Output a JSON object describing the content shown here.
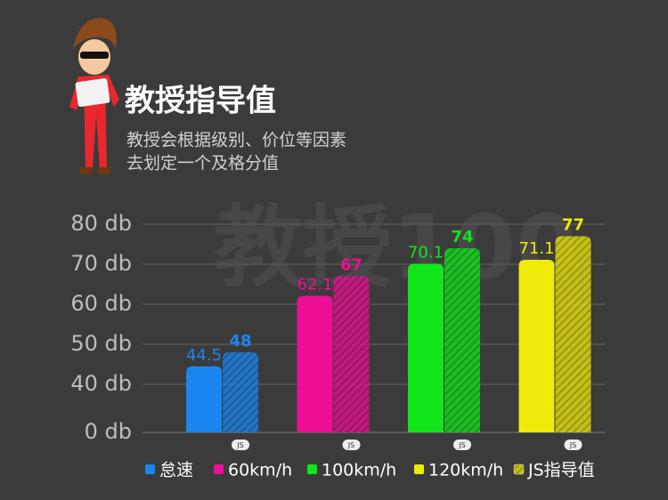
{
  "chart_data": {
    "type": "bar",
    "title": "教授指导值",
    "subtitle": [
      "教授会根据级别、价位等因素",
      "去划定一个及格分值"
    ],
    "watermark": "教授100",
    "categories": [
      "怠速",
      "60km/h",
      "100km/h",
      "120km/h"
    ],
    "colors": [
      "#1a86f0",
      "#ec0f96",
      "#12e61a",
      "#eeea0a"
    ],
    "values": [
      44.5,
      62.1,
      70.1,
      71.1
    ],
    "guide": {
      "name": "JS指导值",
      "badge": "JS",
      "values": [
        48,
        67,
        74,
        77
      ],
      "hatched": true
    },
    "ylim": [
      28,
      80
    ],
    "yticks": [
      {
        "value": 0,
        "label": "0 db"
      },
      {
        "value": 40,
        "label": "40 db"
      },
      {
        "value": 50,
        "label": "50 db"
      },
      {
        "value": 60,
        "label": "60 db"
      },
      {
        "value": 70,
        "label": "70 db"
      },
      {
        "value": 80,
        "label": "80 db"
      }
    ],
    "axis_break": true,
    "grid": true
  }
}
